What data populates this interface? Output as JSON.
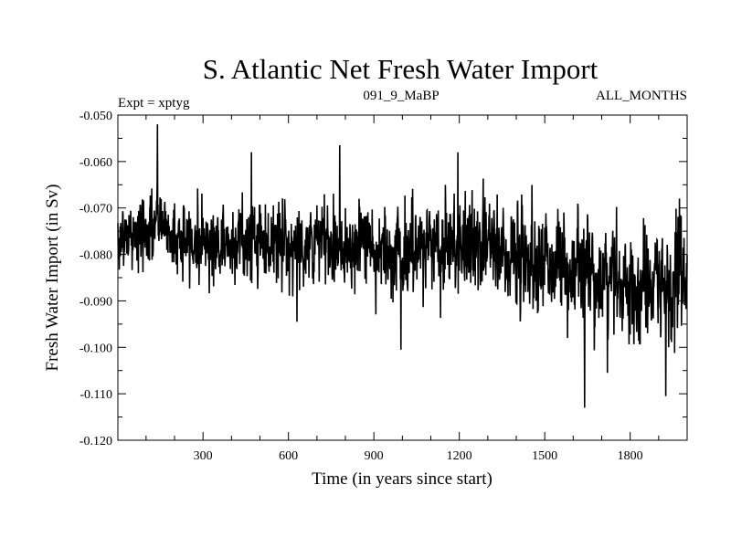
{
  "chart_data": {
    "type": "line",
    "title": "S. Atlantic Net Fresh Water Import",
    "subtitle_left": "Expt = xptyg",
    "subtitle_center": "091_9_MaBP",
    "subtitle_right": "ALL_MONTHS",
    "xlabel": "Time (in years since start)",
    "ylabel": "Fresh Water Import (in Sv)",
    "xlim": [
      1,
      2000
    ],
    "ylim": [
      -0.12,
      -0.05
    ],
    "xticks": [
      300,
      600,
      900,
      1200,
      1500,
      1800
    ],
    "yticks": [
      -0.12,
      -0.11,
      -0.1,
      -0.09,
      -0.08,
      -0.07,
      -0.06,
      -0.05
    ],
    "ytick_labels": [
      "-0.120",
      "-0.110",
      "-0.100",
      "-0.090",
      "-0.080",
      "-0.070",
      "-0.060",
      "-0.050"
    ],
    "grid": false,
    "legend": "none",
    "line_color": "#000000",
    "series": [
      {
        "x": [
          1,
          25,
          50,
          75,
          100,
          125,
          140,
          160,
          175,
          200,
          250,
          300,
          350,
          400,
          450,
          500,
          550,
          600,
          650,
          700,
          750,
          780,
          800,
          850,
          900,
          950,
          980,
          1000,
          1050,
          1100,
          1150,
          1200,
          1250,
          1300,
          1350,
          1400,
          1450,
          1500,
          1550,
          1600,
          1650,
          1700,
          1750,
          1800,
          1850,
          1900,
          1950,
          2000
        ],
        "values": [
          -0.0765,
          -0.0765,
          -0.076,
          -0.0755,
          -0.0755,
          -0.0748,
          -0.0722,
          -0.073,
          -0.075,
          -0.0765,
          -0.0775,
          -0.0768,
          -0.0775,
          -0.0775,
          -0.0772,
          -0.0768,
          -0.0775,
          -0.0775,
          -0.078,
          -0.0778,
          -0.0778,
          -0.0772,
          -0.0775,
          -0.078,
          -0.0785,
          -0.0785,
          -0.0795,
          -0.0805,
          -0.079,
          -0.0775,
          -0.0775,
          -0.0778,
          -0.078,
          -0.0785,
          -0.079,
          -0.0798,
          -0.0805,
          -0.0815,
          -0.082,
          -0.083,
          -0.0838,
          -0.0848,
          -0.086,
          -0.087,
          -0.0875,
          -0.0875,
          -0.0865,
          -0.085
        ]
      }
    ],
    "extremes": [
      {
        "x": 140,
        "y": -0.052
      },
      {
        "x": 470,
        "y": -0.058
      },
      {
        "x": 780,
        "y": -0.0565
      },
      {
        "x": 1195,
        "y": -0.058
      },
      {
        "x": 630,
        "y": -0.0945
      },
      {
        "x": 995,
        "y": -0.1005
      },
      {
        "x": 1580,
        "y": -0.098
      },
      {
        "x": 1640,
        "y": -0.113
      },
      {
        "x": 1720,
        "y": -0.1055
      },
      {
        "x": 1925,
        "y": -0.1105
      },
      {
        "x": 1935,
        "y": -0.1
      }
    ],
    "noise_sd_start": 0.0035,
    "noise_sd_end": 0.0058
  }
}
